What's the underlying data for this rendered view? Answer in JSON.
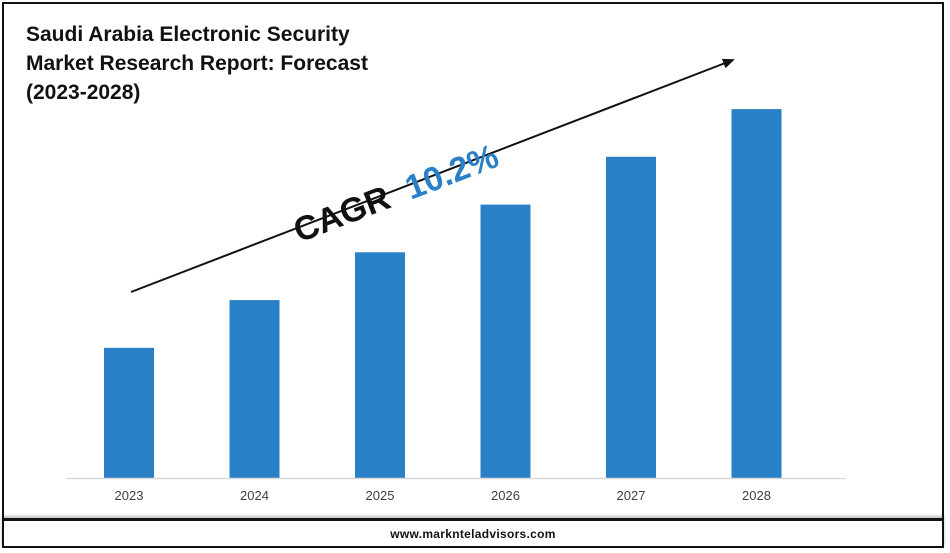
{
  "chart_data": {
    "type": "bar",
    "title_lines": [
      "Saudi Arabia Electronic Security",
      "Market Research Report: Forecast",
      "(2023-2028)"
    ],
    "categories": [
      "2023",
      "2024",
      "2025",
      "2026",
      "2027",
      "2028"
    ],
    "values": [
      30,
      41,
      52,
      63,
      74,
      85
    ],
    "ylim": [
      0,
      100
    ],
    "annotation": {
      "label": "CAGR",
      "value": "10.2%"
    },
    "bar_color": "#2a80c7",
    "annotation_value_color": "#2a80c7",
    "grid": false
  },
  "footer": {
    "url": "www.marknteladvisors.com"
  }
}
